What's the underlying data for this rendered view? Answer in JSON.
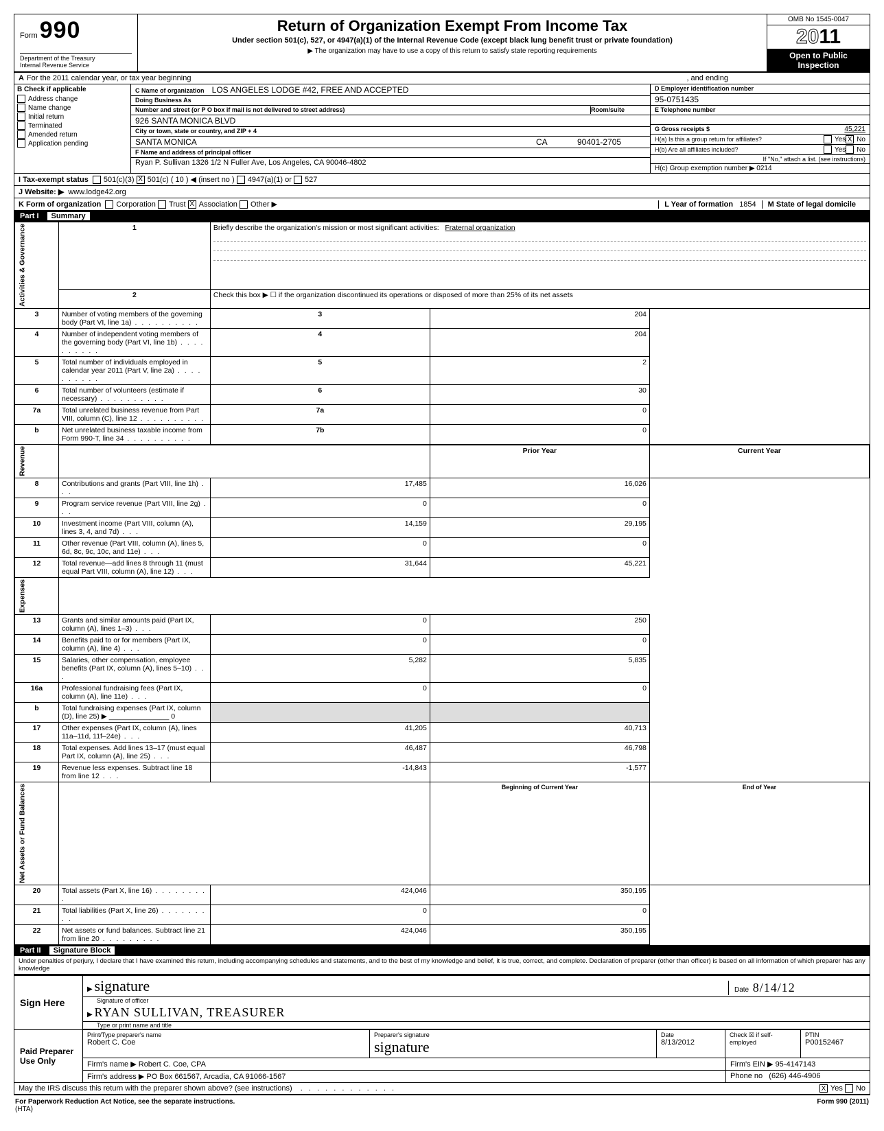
{
  "form": {
    "number_label": "Form",
    "number": "990",
    "dept1": "Department of the Treasury",
    "dept2": "Internal Revenue Service",
    "title": "Return of Organization Exempt From Income Tax",
    "subtitle": "Under section 501(c), 527, or 4947(a)(1) of the Internal Revenue Code (except black lung benefit trust or private foundation)",
    "note": "The organization may have to use a copy of this return to satisfy state reporting requirements",
    "omb": "OMB No 1545-0047",
    "year": "2011",
    "open": "Open to Public",
    "inspection": "Inspection"
  },
  "rowA": {
    "lbl": "A",
    "text1": "For the 2011 calendar year, or tax year beginning",
    "text2": ", and ending"
  },
  "B": {
    "hdr": "B  Check if applicable",
    "items": [
      "Address change",
      "Name change",
      "Initial return",
      "Terminated",
      "Amended return",
      "Application pending"
    ]
  },
  "C": {
    "name_lbl": "C Name of organization",
    "name": "LOS ANGELES LODGE #42, FREE AND ACCEPTED",
    "dba_lbl": "Doing Business As",
    "addr_lbl": "Number and street (or P O  box if mail is not delivered to street address)",
    "room_lbl": "Room/suite",
    "addr": "926 SANTA MONICA BLVD",
    "city_lbl": "City or town, state or country, and ZIP + 4",
    "city": "SANTA MONICA",
    "state": "CA",
    "zip": "90401-2705",
    "F_lbl": "F Name and address of principal officer",
    "F_val": "Ryan P. Sullivan 1326 1/2 N Fuller Ave, Los Angeles, CA  90046-4802"
  },
  "D": {
    "lbl": "D  Employer identification number",
    "val": "95-0751435",
    "E_lbl": "E  Telephone number",
    "G_lbl": "G  Gross receipts $",
    "G_val": "45,221",
    "Ha": "H(a) Is this a group return for affiliates?",
    "Hb": "H(b) Are all affiliates included?",
    "Hb_note": "If \"No,\" attach a list. (see instructions)",
    "Hc": "H(c) Group exemption number ▶ 0214"
  },
  "I": {
    "lbl": "I   Tax-exempt status",
    "opts": [
      "501(c)(3)",
      "501(c)"
    ],
    "insert": "(   10   ) ◀ (insert no )",
    "opts2": [
      "4947(a)(1) or",
      "527"
    ]
  },
  "J": {
    "lbl": "J  Website: ▶",
    "val": "www.lodge42.org"
  },
  "K": {
    "lbl": "K  Form of organization",
    "opts": [
      "Corporation",
      "Trust",
      "Association",
      "Other ▶"
    ],
    "L_lbl": "L Year of formation",
    "L_val": "1854",
    "M_lbl": "M State of legal domicile"
  },
  "part1": {
    "num": "Part I",
    "title": "Summary"
  },
  "summary": {
    "side_labels": [
      "Activities & Governance",
      "Revenue",
      "Expenses",
      "Net Assets or Fund Balances"
    ],
    "rows": [
      {
        "n": "1",
        "t": "Briefly describe the organization's mission or most significant activities:",
        "v": "Fraternal organization",
        "dash": true
      },
      {
        "n": "2",
        "t": "Check this box ▶ ☐ if the organization discontinued its operations or disposed of more than 25% of its net assets"
      },
      {
        "n": "3",
        "t": "Number of voting members of the governing body (Part VI, line 1a)",
        "box": "3",
        "cur": "204"
      },
      {
        "n": "4",
        "t": "Number of independent voting members of the governing body (Part VI, line 1b)",
        "box": "4",
        "cur": "204"
      },
      {
        "n": "5",
        "t": "Total number of individuals employed in calendar year 2011 (Part V, line 2a)",
        "box": "5",
        "cur": "2"
      },
      {
        "n": "6",
        "t": "Total number of volunteers (estimate if necessary)",
        "box": "6",
        "cur": "30"
      },
      {
        "n": "7a",
        "t": "Total unrelated business revenue from Part VIII, column (C), line 12",
        "box": "7a",
        "cur": "0"
      },
      {
        "n": "b",
        "t": "Net unrelated business taxable income from Form 990-T, line 34",
        "box": "7b",
        "cur": "0"
      }
    ],
    "hdr_prior": "Prior Year",
    "hdr_cur": "Current Year",
    "rev": [
      {
        "n": "8",
        "t": "Contributions and grants (Part VIII, line 1h)",
        "p": "17,485",
        "c": "16,026"
      },
      {
        "n": "9",
        "t": "Program service revenue (Part VIII, line 2g)",
        "p": "0",
        "c": "0"
      },
      {
        "n": "10",
        "t": "Investment income (Part VIII, column (A), lines 3, 4, and 7d)",
        "p": "14,159",
        "c": "29,195"
      },
      {
        "n": "11",
        "t": "Other revenue (Part VIII, column (A), lines 5, 6d, 8c, 9c, 10c, and 11e)",
        "p": "0",
        "c": "0"
      },
      {
        "n": "12",
        "t": "Total revenue—add lines 8 through 11 (must equal Part VIII, column (A), line 12)",
        "p": "31,644",
        "c": "45,221"
      }
    ],
    "exp": [
      {
        "n": "13",
        "t": "Grants and similar amounts paid (Part IX, column (A), lines 1–3)",
        "p": "0",
        "c": "250"
      },
      {
        "n": "14",
        "t": "Benefits paid to or for members (Part IX, column (A), line 4)",
        "p": "0",
        "c": "0"
      },
      {
        "n": "15",
        "t": "Salaries, other compensation, employee benefits (Part IX, column (A), lines 5–10)",
        "p": "5,282",
        "c": "5,835"
      },
      {
        "n": "16a",
        "t": "Professional fundraising fees (Part IX, column (A), line 11e)",
        "p": "0",
        "c": "0"
      },
      {
        "n": "b",
        "t": "Total fundraising expenses (Part IX, column (D), line 25) ▶ _______________ 0",
        "p": "",
        "c": "",
        "shade": true
      },
      {
        "n": "17",
        "t": "Other expenses (Part IX, column (A), lines 11a–11d, 11f–24e)",
        "p": "41,205",
        "c": "40,713"
      },
      {
        "n": "18",
        "t": "Total expenses. Add lines 13–17 (must equal Part IX, column (A), line 25)",
        "p": "46,487",
        "c": "46,798"
      },
      {
        "n": "19",
        "t": "Revenue less expenses. Subtract line 18 from line 12",
        "p": "-14,843",
        "c": "-1,577"
      }
    ],
    "hdr_beg": "Beginning of Current Year",
    "hdr_end": "End of Year",
    "net": [
      {
        "n": "20",
        "t": "Total assets (Part X, line 16)",
        "p": "424,046",
        "c": "350,195"
      },
      {
        "n": "21",
        "t": "Total liabilities (Part X, line 26)",
        "p": "0",
        "c": "0"
      },
      {
        "n": "22",
        "t": "Net assets or fund balances. Subtract line 21 from line 20",
        "p": "424,046",
        "c": "350,195"
      }
    ]
  },
  "part2": {
    "num": "Part II",
    "title": "Signature Block"
  },
  "sig": {
    "perjury": "Under penalties of perjury, I declare that I have examined this return, including accompanying schedules and statements, and to the best of my knowledge and belief, it is true, correct, and complete. Declaration of preparer (other than officer) is based on all information of which preparer has any knowledge",
    "sign_here": "Sign Here",
    "sig_lbl": "Signature of officer",
    "date_lbl": "Date",
    "date_val": "8/14/12",
    "typed_lbl": "Type or print name and title",
    "typed_val": "RYAN SULLIVAN, TREASURER",
    "paid": "Paid Preparer Use Only",
    "prep_name_lbl": "Print/Type preparer's name",
    "prep_name": "Robert C. Coe",
    "prep_sig_lbl": "Preparer's signature",
    "prep_date": "8/13/2012",
    "self_emp": "Check ☒ if self-employed",
    "ptin_lbl": "PTIN",
    "ptin": "P00152467",
    "firm_lbl": "Firm's name   ▶",
    "firm": "Robert C. Coe, CPA",
    "ein_lbl": "Firm's EIN ▶",
    "ein": "95-4147143",
    "addr_lbl": "Firm's address ▶",
    "addr": "PO Box 661567, Arcadia, CA 91066-1567",
    "phone_lbl": "Phone no",
    "phone": "(626) 446-4906",
    "discuss": "May the IRS discuss this return with the preparer shown above? (see instructions)",
    "yes": "Yes",
    "no": "No"
  },
  "footer": {
    "l": "For Paperwork Reduction Act Notice, see the separate instructions.",
    "c": "(HTA)",
    "r": "Form 990 (2011)"
  },
  "yesno": {
    "yes": "Yes",
    "no": "No"
  }
}
